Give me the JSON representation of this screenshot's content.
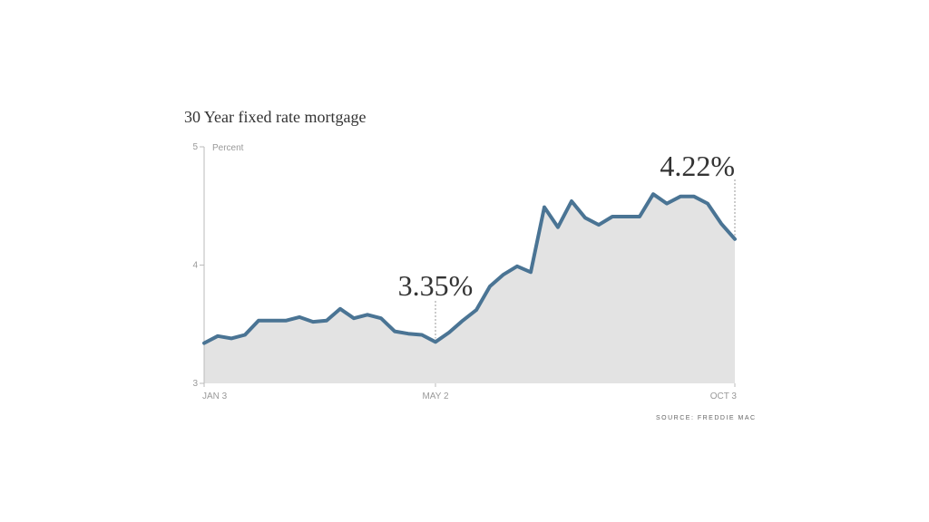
{
  "chart_data": {
    "type": "area",
    "title": "30 Year fixed rate mortgage",
    "ylabel": "Percent",
    "xlabel": "",
    "ylim": [
      3,
      5
    ],
    "y_ticks": [
      "5",
      "4",
      "3"
    ],
    "x_tick_labels": [
      "JAN 3",
      "MAY 2",
      "OCT 3"
    ],
    "grid": false,
    "series": [
      {
        "values": [
          3.34,
          3.4,
          3.38,
          3.41,
          3.53,
          3.53,
          3.53,
          3.56,
          3.52,
          3.53,
          3.63,
          3.55,
          3.58,
          3.55,
          3.44,
          3.42,
          3.41,
          3.35,
          3.43,
          3.53,
          3.62,
          3.82,
          3.92,
          3.99,
          3.94,
          4.49,
          4.32,
          4.54,
          4.4,
          4.34,
          4.41,
          4.41,
          4.41,
          4.6,
          4.52,
          4.58,
          4.58,
          4.52,
          4.35,
          4.22
        ]
      }
    ],
    "annotations": [
      {
        "label": "3.35%",
        "index": 17,
        "value": 3.35
      },
      {
        "label": "4.22%",
        "index": 39,
        "value": 4.22
      }
    ],
    "source": "SOURCE: FREDDIE MAC",
    "colors": {
      "line": "#4a7494",
      "fill": "#e3e3e3",
      "axis": "#bbbbbb",
      "text": "#333333",
      "tick_text": "#999999"
    }
  }
}
